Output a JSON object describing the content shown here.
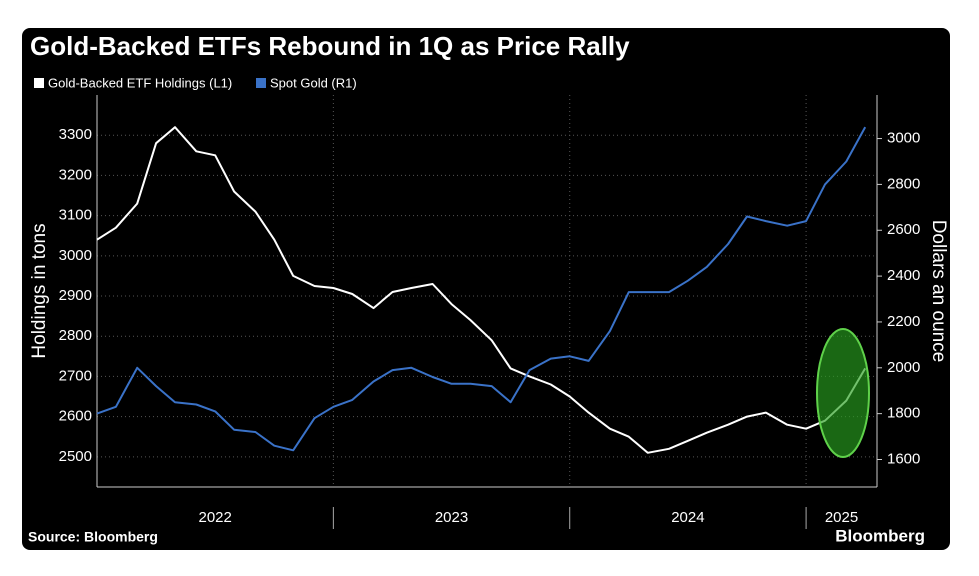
{
  "chart_data": {
    "type": "line",
    "title": "Gold-Backed ETFs Rebound in 1Q as Price Rally",
    "ylabel": "Holdings in tons",
    "y2label": "Dollars an ounce",
    "source": "Source: Bloomberg",
    "brand": "Bloomberg",
    "x": [
      2022.0,
      2022.08,
      2022.17,
      2022.25,
      2022.33,
      2022.42,
      2022.5,
      2022.58,
      2022.67,
      2022.75,
      2022.83,
      2022.92,
      2023.0,
      2023.08,
      2023.17,
      2023.25,
      2023.33,
      2023.42,
      2023.5,
      2023.58,
      2023.67,
      2023.75,
      2023.83,
      2023.92,
      2024.0,
      2024.08,
      2024.17,
      2024.25,
      2024.33,
      2024.42,
      2024.5,
      2024.58,
      2024.67,
      2024.75,
      2024.83,
      2024.92,
      2025.0,
      2025.08,
      2025.17,
      2025.25
    ],
    "xlim": [
      2022.0,
      2025.3
    ],
    "xticks": [
      2023,
      2024,
      2025
    ],
    "x_labels": [
      "2022",
      "2023",
      "2024",
      "2025"
    ],
    "ylim": [
      2425,
      3400
    ],
    "yticks": [
      2500,
      2600,
      2700,
      2800,
      2900,
      3000,
      3100,
      3200,
      3300
    ],
    "y2lim": [
      1480,
      3190
    ],
    "y2ticks": [
      1600,
      1800,
      2000,
      2200,
      2400,
      2600,
      2800,
      3000
    ],
    "grid": true,
    "series": [
      {
        "name": "Gold-Backed ETF Holdings (L1)",
        "color": "#ffffff",
        "values": [
          3040,
          3070,
          3130,
          3280,
          3320,
          3260,
          3250,
          3160,
          3110,
          3040,
          2950,
          2925,
          2920,
          2905,
          2870,
          2910,
          2920,
          2930,
          2880,
          2840,
          2790,
          2720,
          2700,
          2680,
          2650,
          2610,
          2570,
          2550,
          2510,
          2520,
          2540,
          2560,
          2580,
          2600,
          2610,
          2580,
          2570,
          2590,
          2640,
          2720
        ]
      },
      {
        "name": "Spot Gold (R1)",
        "color": "#3a72c8",
        "axis": "y2",
        "values": [
          1800,
          1830,
          2000,
          1920,
          1850,
          1840,
          1810,
          1730,
          1720,
          1660,
          1640,
          1780,
          1830,
          1860,
          1940,
          1990,
          2000,
          1960,
          1930,
          1930,
          1920,
          1850,
          1990,
          2040,
          2050,
          2030,
          2160,
          2330,
          2330,
          2330,
          2380,
          2440,
          2540,
          2660,
          2640,
          2620,
          2640,
          2800,
          2900,
          3050
        ]
      }
    ]
  }
}
